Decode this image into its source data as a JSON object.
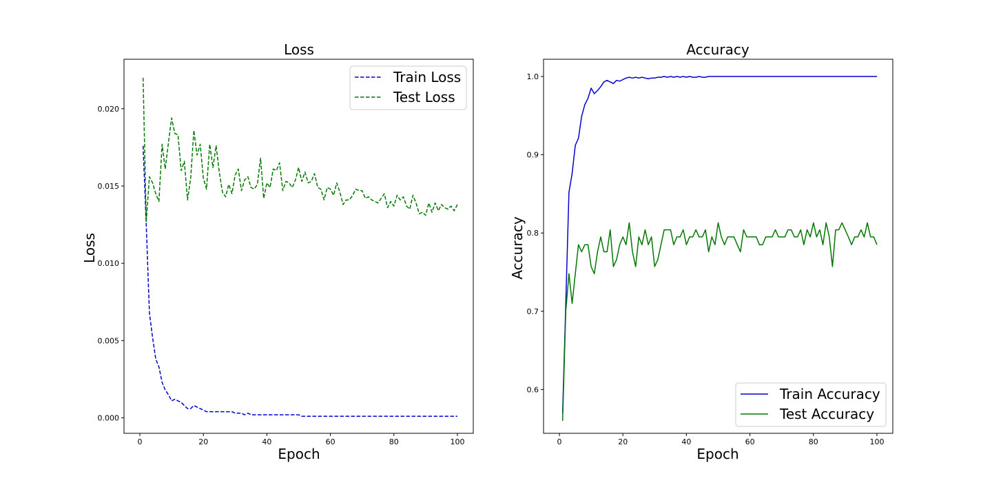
{
  "chart_data": [
    {
      "type": "line",
      "title": "Loss",
      "xlabel": "Epoch",
      "ylabel": "Loss",
      "xlim": [
        -5,
        105
      ],
      "ylim": [
        -0.001,
        0.0232
      ],
      "xticks": [
        0,
        20,
        40,
        60,
        80,
        100
      ],
      "yticks": [
        0.0,
        0.005,
        0.01,
        0.015,
        0.02
      ],
      "ytick_labels": [
        "0.000",
        "0.005",
        "0.010",
        "0.015",
        "0.020"
      ],
      "grid": false,
      "legend": "top-right",
      "x": [
        1,
        2,
        3,
        4,
        5,
        6,
        7,
        8,
        9,
        10,
        11,
        12,
        13,
        14,
        15,
        16,
        17,
        18,
        19,
        20,
        21,
        22,
        23,
        24,
        25,
        26,
        27,
        28,
        29,
        30,
        31,
        32,
        33,
        34,
        35,
        36,
        37,
        38,
        39,
        40,
        41,
        42,
        43,
        44,
        45,
        46,
        47,
        48,
        49,
        50,
        51,
        52,
        53,
        54,
        55,
        56,
        57,
        58,
        59,
        60,
        61,
        62,
        63,
        64,
        65,
        66,
        67,
        68,
        69,
        70,
        71,
        72,
        73,
        74,
        75,
        76,
        77,
        78,
        79,
        80,
        81,
        82,
        83,
        84,
        85,
        86,
        87,
        88,
        89,
        90,
        91,
        92,
        93,
        94,
        95,
        96,
        97,
        98,
        99,
        100
      ],
      "series": [
        {
          "name": "Train Loss",
          "color": "#0000cc",
          "style": "dashed",
          "values": [
            0.0176,
            0.0125,
            0.0068,
            0.0052,
            0.0038,
            0.0033,
            0.0023,
            0.0018,
            0.0015,
            0.0011,
            0.0012,
            0.0011,
            0.001,
            0.0008,
            0.0006,
            0.0006,
            0.0008,
            0.0007,
            0.0006,
            0.0005,
            0.0004,
            0.0004,
            0.0004,
            0.0004,
            0.0004,
            0.0004,
            0.0004,
            0.0004,
            0.0004,
            0.0003,
            0.0003,
            0.0003,
            0.0002,
            0.0003,
            0.0002,
            0.0002,
            0.0002,
            0.0002,
            0.0002,
            0.0002,
            0.0002,
            0.0002,
            0.0002,
            0.0002,
            0.0002,
            0.0002,
            0.0002,
            0.0002,
            0.0002,
            0.0002,
            0.0001,
            0.0001,
            0.0001,
            0.0001,
            0.0001,
            0.0001,
            0.0001,
            0.0001,
            0.0001,
            0.0001,
            0.0001,
            0.0001,
            0.0001,
            0.0001,
            0.0001,
            0.0001,
            0.0001,
            0.0001,
            0.0001,
            0.0001,
            0.0001,
            0.0001,
            0.0001,
            0.0001,
            0.0001,
            0.0001,
            0.0001,
            0.0001,
            0.0001,
            0.0001,
            0.0001,
            0.0001,
            0.0001,
            0.0001,
            0.0001,
            0.0001,
            0.0001,
            0.0001,
            0.0001,
            0.0001,
            0.0001,
            0.0001,
            0.0001,
            0.0001,
            0.0001,
            0.0001,
            0.0001,
            0.0001,
            0.0001,
            0.0001
          ]
        },
        {
          "name": "Test Loss",
          "color": "#007700",
          "style": "dashed",
          "values": [
            0.022,
            0.0127,
            0.0156,
            0.0152,
            0.0145,
            0.014,
            0.0177,
            0.0161,
            0.0178,
            0.0194,
            0.0184,
            0.0183,
            0.016,
            0.0166,
            0.0141,
            0.0155,
            0.0186,
            0.017,
            0.0177,
            0.0155,
            0.0148,
            0.0177,
            0.0162,
            0.0176,
            0.0159,
            0.0146,
            0.0143,
            0.0151,
            0.0145,
            0.0157,
            0.0161,
            0.0147,
            0.0154,
            0.0156,
            0.0149,
            0.0148,
            0.0151,
            0.0168,
            0.0142,
            0.0152,
            0.0149,
            0.0161,
            0.016,
            0.0165,
            0.0147,
            0.0153,
            0.0152,
            0.0149,
            0.0154,
            0.0162,
            0.0153,
            0.0159,
            0.0152,
            0.0153,
            0.0158,
            0.0149,
            0.0148,
            0.0141,
            0.0149,
            0.0148,
            0.0144,
            0.0152,
            0.0146,
            0.0138,
            0.0141,
            0.0141,
            0.0144,
            0.0148,
            0.0147,
            0.0147,
            0.0142,
            0.0143,
            0.0141,
            0.014,
            0.0139,
            0.0142,
            0.0145,
            0.0136,
            0.014,
            0.0137,
            0.0144,
            0.0141,
            0.0143,
            0.0137,
            0.0135,
            0.0144,
            0.0139,
            0.0132,
            0.0133,
            0.0131,
            0.0139,
            0.0133,
            0.0139,
            0.0134,
            0.0138,
            0.0136,
            0.0135,
            0.0137,
            0.0134,
            0.0138
          ]
        }
      ]
    },
    {
      "type": "line",
      "title": "Accuracy",
      "xlabel": "Epoch",
      "ylabel": "Accuracy",
      "xlim": [
        -5,
        105
      ],
      "ylim": [
        0.544,
        1.022
      ],
      "xticks": [
        0,
        20,
        40,
        60,
        80,
        100
      ],
      "yticks": [
        0.6,
        0.7,
        0.8,
        0.9,
        1.0
      ],
      "ytick_labels": [
        "0.6",
        "0.7",
        "0.8",
        "0.9",
        "1.0"
      ],
      "grid": false,
      "legend": "bottom-right",
      "x": [
        1,
        2,
        3,
        4,
        5,
        6,
        7,
        8,
        9,
        10,
        11,
        12,
        13,
        14,
        15,
        16,
        17,
        18,
        19,
        20,
        21,
        22,
        23,
        24,
        25,
        26,
        27,
        28,
        29,
        30,
        31,
        32,
        33,
        34,
        35,
        36,
        37,
        38,
        39,
        40,
        41,
        42,
        43,
        44,
        45,
        46,
        47,
        48,
        49,
        50,
        51,
        52,
        53,
        54,
        55,
        56,
        57,
        58,
        59,
        60,
        61,
        62,
        63,
        64,
        65,
        66,
        67,
        68,
        69,
        70,
        71,
        72,
        73,
        74,
        75,
        76,
        77,
        78,
        79,
        80,
        81,
        82,
        83,
        84,
        85,
        86,
        87,
        88,
        89,
        90,
        91,
        92,
        93,
        94,
        95,
        96,
        97,
        98,
        99,
        100
      ],
      "series": [
        {
          "name": "Train Accuracy",
          "color": "#0000cc",
          "style": "solid",
          "values": [
            0.57,
            0.71,
            0.852,
            0.876,
            0.912,
            0.921,
            0.949,
            0.964,
            0.972,
            0.985,
            0.978,
            0.982,
            0.987,
            0.993,
            0.995,
            0.993,
            0.991,
            0.995,
            0.994,
            0.996,
            0.998,
            0.999,
            0.998,
            0.999,
            0.998,
            0.999,
            0.998,
            0.997,
            0.998,
            0.998,
            0.999,
            0.999,
            1.0,
            0.999,
            1.0,
            0.999,
            1.0,
            0.999,
            1.0,
            0.999,
            1.0,
            0.999,
            0.999,
            1.0,
            0.999,
            0.999,
            1.0,
            1.0,
            1.0,
            1.0,
            1.0,
            1.0,
            1.0,
            1.0,
            1.0,
            1.0,
            1.0,
            1.0,
            1.0,
            1.0,
            1.0,
            1.0,
            1.0,
            1.0,
            1.0,
            1.0,
            1.0,
            1.0,
            1.0,
            1.0,
            1.0,
            1.0,
            1.0,
            1.0,
            1.0,
            1.0,
            1.0,
            1.0,
            1.0,
            1.0,
            1.0,
            1.0,
            1.0,
            1.0,
            1.0,
            1.0,
            1.0,
            1.0,
            1.0,
            1.0,
            1.0,
            1.0,
            1.0,
            1.0,
            1.0,
            1.0,
            1.0,
            1.0,
            1.0,
            1.0
          ]
        },
        {
          "name": "Test Accuracy",
          "color": "#007700",
          "style": "solid",
          "values": [
            0.56,
            0.7,
            0.748,
            0.71,
            0.748,
            0.785,
            0.776,
            0.785,
            0.785,
            0.757,
            0.748,
            0.776,
            0.795,
            0.776,
            0.776,
            0.804,
            0.757,
            0.766,
            0.785,
            0.795,
            0.785,
            0.813,
            0.776,
            0.757,
            0.795,
            0.785,
            0.804,
            0.785,
            0.795,
            0.757,
            0.766,
            0.785,
            0.804,
            0.804,
            0.804,
            0.785,
            0.795,
            0.795,
            0.804,
            0.785,
            0.795,
            0.795,
            0.804,
            0.795,
            0.795,
            0.804,
            0.776,
            0.795,
            0.785,
            0.813,
            0.795,
            0.785,
            0.795,
            0.795,
            0.795,
            0.785,
            0.776,
            0.804,
            0.795,
            0.795,
            0.795,
            0.795,
            0.785,
            0.785,
            0.795,
            0.795,
            0.795,
            0.804,
            0.795,
            0.795,
            0.795,
            0.804,
            0.804,
            0.795,
            0.795,
            0.804,
            0.785,
            0.804,
            0.795,
            0.813,
            0.795,
            0.804,
            0.785,
            0.813,
            0.795,
            0.757,
            0.804,
            0.804,
            0.813,
            0.804,
            0.795,
            0.785,
            0.795,
            0.795,
            0.804,
            0.795,
            0.813,
            0.795,
            0.795,
            0.785
          ]
        }
      ]
    }
  ]
}
